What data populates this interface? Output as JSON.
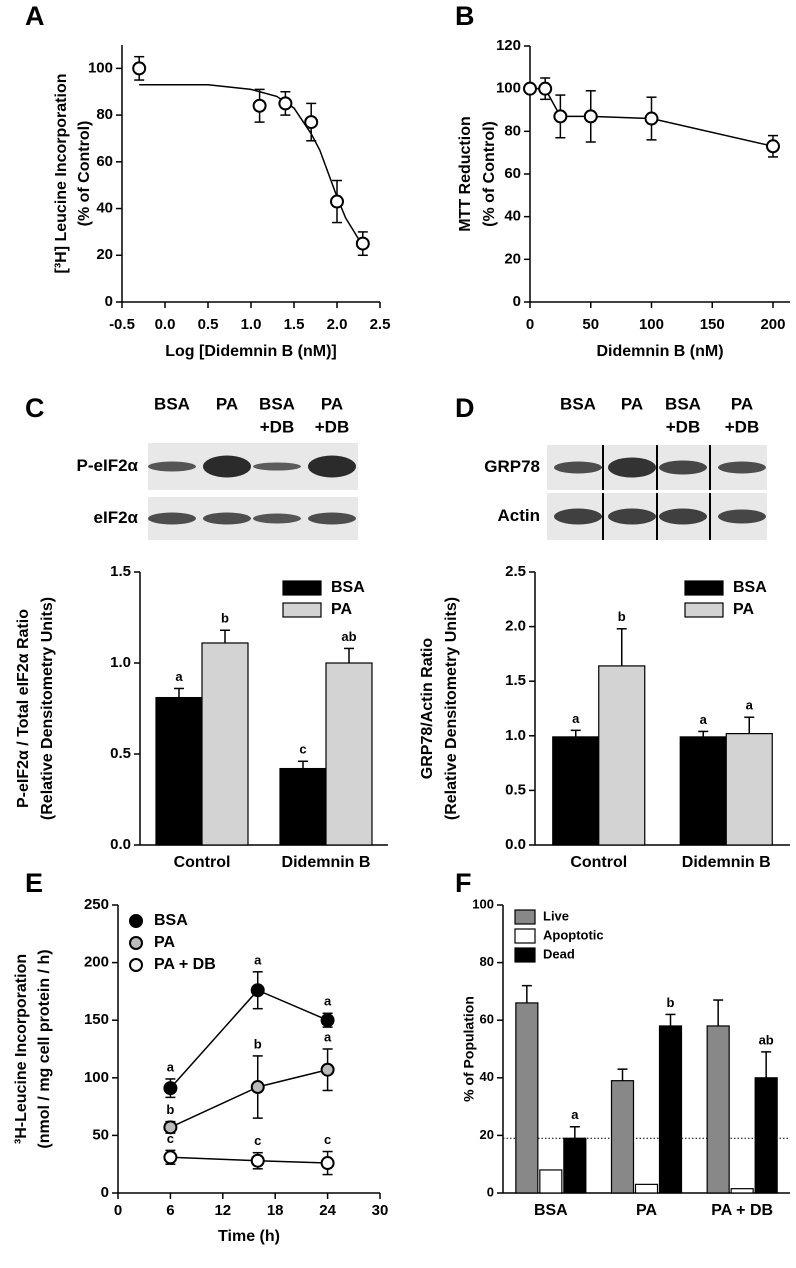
{
  "chart_data": [
    {
      "type": "scatter",
      "panel": "A",
      "ylabel": [
        "[³H] Leucine Incorporation",
        "(% of Control)"
      ],
      "xlabel": "Log [Didemnin B (nM)]",
      "xlim": [
        -0.5,
        2.5
      ],
      "xticks": [
        -0.5,
        {
          "value": 0,
          "label": "0.0"
        },
        0.5,
        {
          "value": 1,
          "label": "1.0"
        },
        1.5,
        {
          "value": 2,
          "label": "2.0"
        },
        2.5
      ],
      "ylim": [
        0,
        110
      ],
      "yticks": [
        0,
        20,
        40,
        60,
        80,
        100
      ],
      "series": [
        {
          "color": "#ffffff",
          "x": [
            -0.3,
            1.1,
            1.4,
            1.7,
            2.0,
            2.3
          ],
          "values": [
            100,
            84,
            85,
            77,
            43,
            25
          ],
          "errors": [
            5,
            7,
            5,
            8,
            9,
            5
          ]
        }
      ],
      "fit": {
        "x": [
          -0.3,
          0.5,
          1.0,
          1.3,
          1.5,
          1.7,
          1.8,
          1.9,
          2.0,
          2.1,
          2.2,
          2.3
        ],
        "values": [
          93,
          93,
          91,
          88,
          83,
          72,
          65,
          55,
          45,
          36,
          30,
          24
        ]
      }
    },
    {
      "type": "line",
      "panel": "B",
      "ylabel": [
        "MTT Reduction",
        "(% of Control)"
      ],
      "xlabel": "Didemnin B (nM)",
      "xlim": [
        0,
        214
      ],
      "xticks": [
        0,
        50,
        100,
        150,
        200
      ],
      "ylim": [
        0,
        120
      ],
      "yticks": [
        0,
        20,
        40,
        60,
        80,
        100,
        120
      ],
      "series": [
        {
          "color": "#ffffff",
          "x": [
            0,
            12.5,
            25,
            50,
            100,
            200
          ],
          "values": [
            100,
            100,
            87,
            87,
            86,
            73
          ],
          "errors": [
            0,
            5,
            10,
            12,
            10,
            5
          ]
        }
      ]
    },
    {
      "type": "bar",
      "panel": "C",
      "ylabel": [
        "P-eIF2α / Total eIF2α Ratio",
        "(Relative Densitometry Units)"
      ],
      "categories": [
        "Control",
        "Didemnin B"
      ],
      "ylim": [
        0,
        1.5
      ],
      "yticks": [
        {
          "value": 0,
          "label": "0.0"
        },
        0.5,
        {
          "value": 1,
          "label": "1.0"
        },
        1.5
      ],
      "legend": "upper right",
      "series": [
        {
          "name": "BSA",
          "color": "#000000",
          "values": [
            0.81,
            0.42
          ],
          "errors": [
            0.05,
            0.04
          ],
          "letters": [
            "a",
            "c"
          ]
        },
        {
          "name": "PA",
          "color": "#d3d3d3",
          "values": [
            1.11,
            1.0
          ],
          "errors": [
            0.07,
            0.08
          ],
          "letters": [
            "b",
            "ab"
          ]
        }
      ],
      "blot": {
        "lanes": [
          [
            "BSA"
          ],
          [
            "PA"
          ],
          [
            "BSA",
            "+DB"
          ],
          [
            "PA",
            "+DB"
          ]
        ],
        "rows": [
          "P-eIF2α",
          "eIF2α"
        ]
      }
    },
    {
      "type": "bar",
      "panel": "D",
      "ylabel": [
        "GRP78/Actin Ratio",
        "(Relative Densitometry Units)"
      ],
      "categories": [
        "Control",
        "Didemnin B"
      ],
      "ylim": [
        0,
        2.5
      ],
      "yticks": [
        {
          "value": 0,
          "label": "0.0"
        },
        0.5,
        {
          "value": 1,
          "label": "1.0"
        },
        1.5,
        {
          "value": 2,
          "label": "2.0"
        },
        2.5
      ],
      "legend": "upper right",
      "series": [
        {
          "name": "BSA",
          "color": "#000000",
          "values": [
            0.99,
            0.99
          ],
          "errors": [
            0.06,
            0.05
          ],
          "letters": [
            "a",
            "a"
          ]
        },
        {
          "name": "PA",
          "color": "#d3d3d3",
          "values": [
            1.64,
            1.02
          ],
          "errors": [
            0.34,
            0.15
          ],
          "letters": [
            "b",
            "a"
          ]
        }
      ],
      "blot": {
        "lanes": [
          [
            "BSA"
          ],
          [
            "PA"
          ],
          [
            "BSA",
            "+DB"
          ],
          [
            "PA",
            "+DB"
          ]
        ],
        "rows": [
          "GRP78",
          "Actin"
        ]
      }
    },
    {
      "type": "line",
      "panel": "E",
      "ylabel": [
        "³H-Leucine Incorporation",
        "(nmol / mg cell protein / h)"
      ],
      "xlabel": "Time (h)",
      "xlim": [
        0,
        30
      ],
      "xticks": [
        0,
        6,
        12,
        18,
        24,
        30
      ],
      "ylim": [
        0,
        250
      ],
      "yticks": [
        0,
        50,
        100,
        150,
        200,
        250
      ],
      "legend": "upper left",
      "series": [
        {
          "name": "BSA",
          "color": "#000000",
          "x": [
            6,
            16,
            24
          ],
          "values": [
            91,
            176,
            150
          ],
          "errors": [
            8,
            16,
            6
          ],
          "letters": [
            "a",
            "a",
            "a"
          ]
        },
        {
          "name": "PA",
          "color": "#bbbbbb",
          "x": [
            6,
            16,
            24
          ],
          "values": [
            57,
            92,
            107
          ],
          "errors": [
            5,
            27,
            18
          ],
          "letters": [
            "b",
            "b",
            "a"
          ]
        },
        {
          "name": "PA + DB",
          "color": "#ffffff",
          "x": [
            6,
            16,
            24
          ],
          "values": [
            31,
            28,
            26
          ],
          "errors": [
            6,
            7,
            10
          ],
          "letters": [
            "c",
            "c",
            "c"
          ]
        }
      ]
    },
    {
      "type": "bar",
      "panel": "F",
      "ylabel": [
        "% of Population"
      ],
      "categories": [
        "BSA",
        "PA",
        "PA + DB"
      ],
      "ylim": [
        0,
        100
      ],
      "yticks": [
        0,
        20,
        40,
        60,
        80,
        100
      ],
      "legend": "upper left",
      "reference_line": 19,
      "series": [
        {
          "name": "Live",
          "color": "#888888",
          "values": [
            66,
            39,
            58
          ],
          "errors": [
            6,
            4,
            9
          ]
        },
        {
          "name": "Apoptotic",
          "color": "#ffffff",
          "values": [
            8,
            3,
            1.5
          ]
        },
        {
          "name": "Dead",
          "color": "#000000",
          "values": [
            19,
            58,
            40
          ],
          "errors": [
            4,
            4,
            9
          ],
          "letters": [
            "a",
            "b",
            "ab"
          ]
        }
      ]
    }
  ]
}
